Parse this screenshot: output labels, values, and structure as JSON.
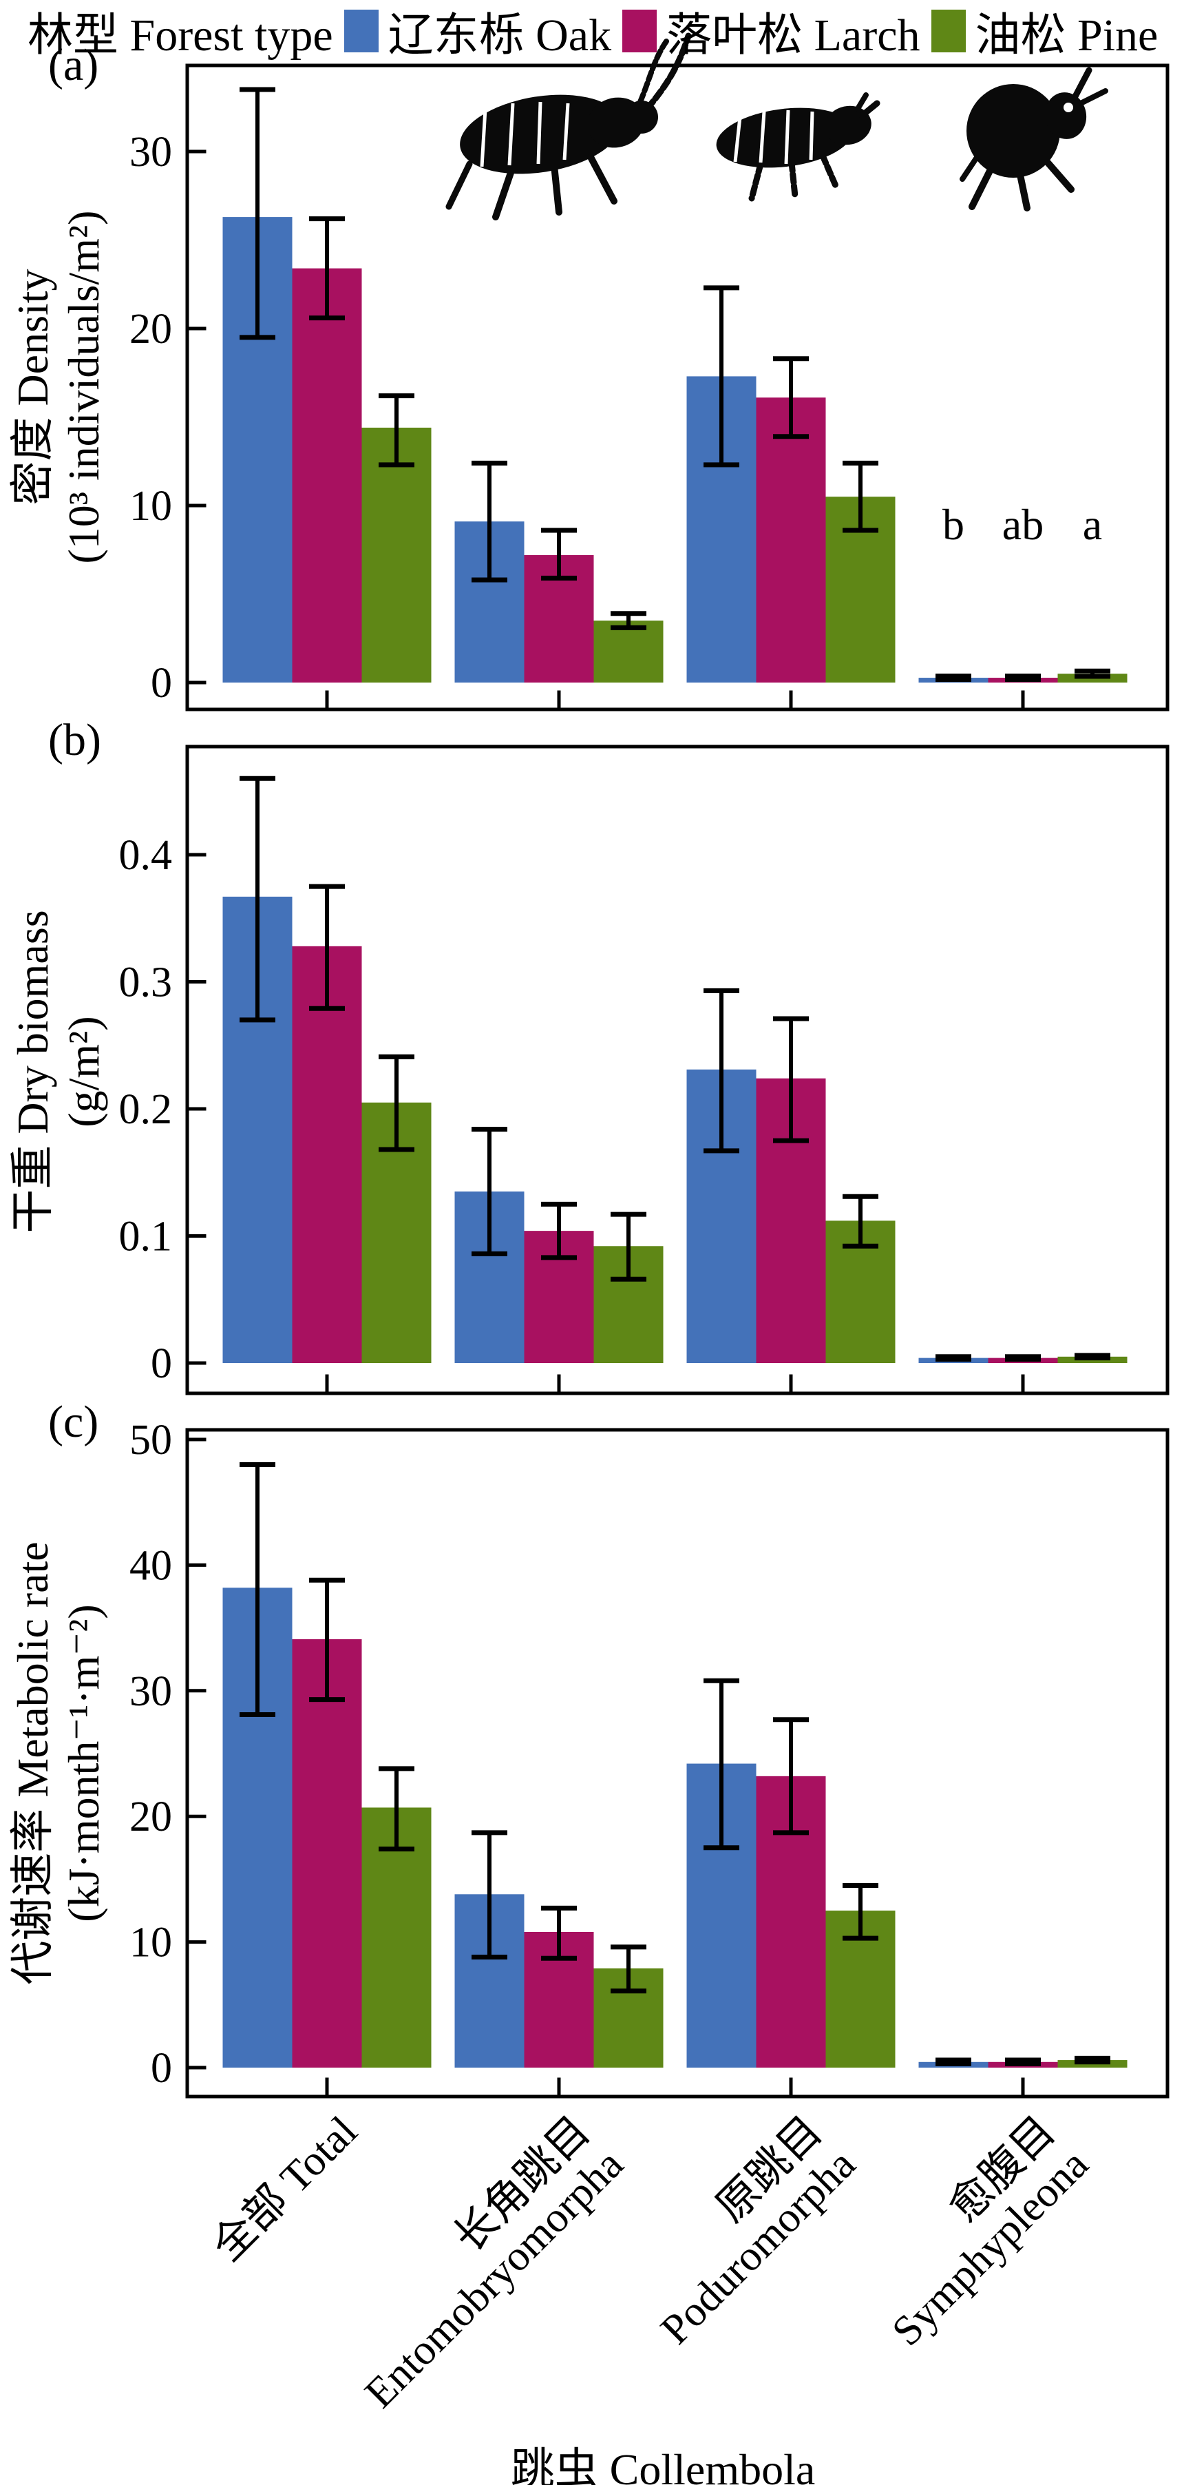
{
  "legend": {
    "title": "林型 Forest type",
    "items": [
      {
        "label": "辽东栎 Oak",
        "color": "#4472b9"
      },
      {
        "label": "落叶松 Larch",
        "color": "#a81160"
      },
      {
        "label": "油松 Pine",
        "color": "#5f8716"
      }
    ]
  },
  "xaxis": {
    "title": "跳虫 Collembola",
    "categories": [
      {
        "line1": "全部 Total",
        "line2": ""
      },
      {
        "line1": "长角跳目",
        "line2": "Entomobryomorpha"
      },
      {
        "line1": "原跳目",
        "line2": "Poduromorpha"
      },
      {
        "line1": "愈腹目",
        "line2": "Symphypleona"
      }
    ]
  },
  "chart_data": [
    {
      "type": "bar",
      "panel_label": "(a)",
      "ylabel_lines": [
        "密度 Density",
        "(10³ individuals/m²)"
      ],
      "categories": [
        "全部 Total",
        "长角跳目 Entomobryomorpha",
        "原跳目 Poduromorpha",
        "愈腹目 Symphypleona"
      ],
      "ylim": [
        0,
        34.8
      ],
      "yticks": [
        {
          "v": 0,
          "label": "0"
        },
        {
          "v": 10,
          "label": "10"
        },
        {
          "v": 20,
          "label": "20"
        },
        {
          "v": 30,
          "label": "30"
        }
      ],
      "grid": false,
      "legend_position": "top-outside",
      "series": [
        {
          "name": "辽东栎 Oak",
          "color": "#4472b9",
          "values": [
            26.3,
            9.1,
            17.3,
            0.27
          ],
          "err_low": [
            19.5,
            5.8,
            12.3,
            0.17
          ],
          "err_high": [
            33.5,
            12.4,
            22.3,
            0.37
          ]
        },
        {
          "name": "落叶松 Larch",
          "color": "#a81160",
          "values": [
            23.4,
            7.2,
            16.1,
            0.27
          ],
          "err_low": [
            20.6,
            5.9,
            13.9,
            0.17
          ],
          "err_high": [
            26.2,
            8.6,
            18.3,
            0.37
          ]
        },
        {
          "name": "油松 Pine",
          "color": "#5f8716",
          "values": [
            14.4,
            3.5,
            10.5,
            0.5
          ],
          "err_low": [
            12.3,
            3.1,
            8.6,
            0.35
          ],
          "err_high": [
            16.2,
            3.9,
            12.4,
            0.65
          ]
        }
      ],
      "sig_letters": [
        {
          "text": "b",
          "group_index": 3,
          "series_index": 0,
          "value": 8.1
        },
        {
          "text": "ab",
          "group_index": 3,
          "series_index": 1,
          "value": 8.1
        },
        {
          "text": "a",
          "group_index": 3,
          "series_index": 2,
          "value": 8.1
        }
      ],
      "icons": [
        {
          "name": "entomobryomorpha-springtail-icon",
          "group_index": 1
        },
        {
          "name": "poduromorpha-springtail-icon",
          "group_index": 2
        },
        {
          "name": "symphypleona-springtail-icon",
          "group_index": 3
        }
      ]
    },
    {
      "type": "bar",
      "panel_label": "(b)",
      "ylabel_lines": [
        "干重 Dry biomass",
        "(g/m²)"
      ],
      "categories": [
        "全部 Total",
        "长角跳目 Entomobryomorpha",
        "原跳目 Poduromorpha",
        "愈腹目 Symphypleona"
      ],
      "ylim": [
        0,
        0.485
      ],
      "yticks": [
        {
          "v": 0,
          "label": "0"
        },
        {
          "v": 0.1,
          "label": "0.1"
        },
        {
          "v": 0.2,
          "label": "0.2"
        },
        {
          "v": 0.3,
          "label": "0.3"
        },
        {
          "v": 0.4,
          "label": "0.4"
        }
      ],
      "grid": false,
      "series": [
        {
          "name": "辽东栎 Oak",
          "color": "#4472b9",
          "values": [
            0.367,
            0.135,
            0.231,
            0.004
          ],
          "err_low": [
            0.27,
            0.086,
            0.167,
            0.003
          ],
          "err_high": [
            0.46,
            0.184,
            0.293,
            0.005
          ]
        },
        {
          "name": "落叶松 Larch",
          "color": "#a81160",
          "values": [
            0.328,
            0.104,
            0.224,
            0.004
          ],
          "err_low": [
            0.279,
            0.083,
            0.175,
            0.003
          ],
          "err_high": [
            0.375,
            0.125,
            0.271,
            0.005
          ]
        },
        {
          "name": "油松 Pine",
          "color": "#5f8716",
          "values": [
            0.205,
            0.092,
            0.112,
            0.005
          ],
          "err_low": [
            0.168,
            0.066,
            0.092,
            0.004
          ],
          "err_high": [
            0.241,
            0.117,
            0.131,
            0.006
          ]
        }
      ],
      "sig_letters": [],
      "icons": []
    },
    {
      "type": "bar",
      "panel_label": "(c)",
      "ylabel_lines": [
        "代谢速率 Metabolic rate",
        "(kJ·month⁻¹·m⁻²)"
      ],
      "categories": [
        "全部 Total",
        "长角跳目 Entomobryomorpha",
        "原跳目 Poduromorpha",
        "愈腹目 Symphypleona"
      ],
      "ylim": [
        0,
        50.5
      ],
      "yticks": [
        {
          "v": 0,
          "label": "0"
        },
        {
          "v": 10,
          "label": "10"
        },
        {
          "v": 20,
          "label": "20"
        },
        {
          "v": 30,
          "label": "30"
        },
        {
          "v": 40,
          "label": "40"
        },
        {
          "v": 50,
          "label": "50"
        }
      ],
      "grid": false,
      "series": [
        {
          "name": "辽东栎 Oak",
          "color": "#4472b9",
          "values": [
            38.2,
            13.8,
            24.2,
            0.45
          ],
          "err_low": [
            28.1,
            8.8,
            17.5,
            0.3
          ],
          "err_high": [
            48.0,
            18.7,
            30.8,
            0.6
          ]
        },
        {
          "name": "落叶松 Larch",
          "color": "#a81160",
          "values": [
            34.1,
            10.8,
            23.2,
            0.45
          ],
          "err_low": [
            29.3,
            8.7,
            18.7,
            0.3
          ],
          "err_high": [
            38.8,
            12.7,
            27.7,
            0.6
          ]
        },
        {
          "name": "油松 Pine",
          "color": "#5f8716",
          "values": [
            20.7,
            7.9,
            12.5,
            0.6
          ],
          "err_low": [
            17.4,
            6.1,
            10.3,
            0.45
          ],
          "err_high": [
            23.8,
            9.6,
            14.5,
            0.75
          ]
        }
      ],
      "sig_letters": [],
      "icons": []
    }
  ]
}
